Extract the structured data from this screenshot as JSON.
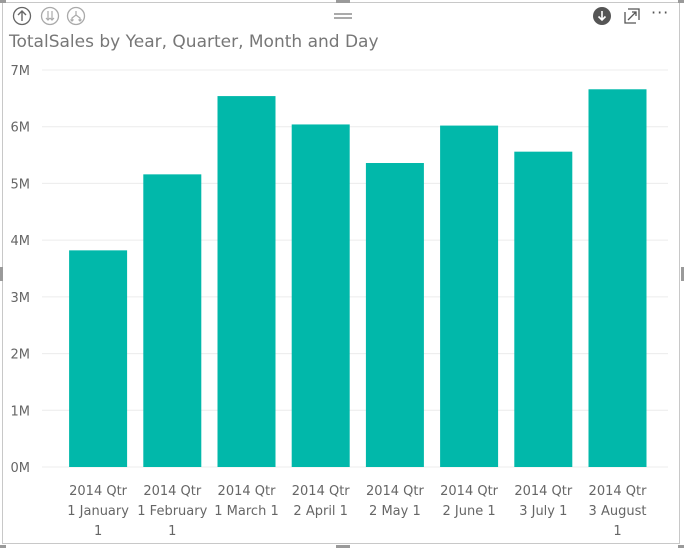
{
  "header": {
    "drill_up_icon": "arrow-up-circle-icon",
    "drill_down_all_icon": "double-arrow-down-circle-icon",
    "expand_hierarchy_icon": "fork-down-circle-icon",
    "drag_handle_icon": "drag-handle-icon",
    "drill_mode_icon": "arrow-down-filled-circle-icon",
    "focus_mode_icon": "focus-mode-icon",
    "more_options_icon": "ellipsis-icon",
    "more_options_label": "···"
  },
  "chart_data": {
    "type": "bar",
    "title": "TotalSales by Year, Quarter, Month and Day",
    "xlabel": "",
    "ylabel": "",
    "categories": [
      [
        "2014 Qtr",
        "1 January",
        "1"
      ],
      [
        "2014 Qtr",
        "1 February",
        "1"
      ],
      [
        "2014 Qtr",
        "1 March 1"
      ],
      [
        "2014 Qtr",
        "2 April 1"
      ],
      [
        "2014 Qtr",
        "2 May 1"
      ],
      [
        "2014 Qtr",
        "2 June 1"
      ],
      [
        "2014 Qtr",
        "3 July 1"
      ],
      [
        "2014 Qtr",
        "3 August",
        "1"
      ]
    ],
    "values": [
      3820000,
      5160000,
      6540000,
      6040000,
      5360000,
      6020000,
      5560000,
      6660000
    ],
    "ylim": [
      0,
      7000000
    ],
    "yticks": [
      0,
      1000000,
      2000000,
      3000000,
      4000000,
      5000000,
      6000000,
      7000000
    ],
    "ytick_labels": [
      "0M",
      "1M",
      "2M",
      "3M",
      "4M",
      "5M",
      "6M",
      "7M"
    ],
    "grid": true,
    "bar_color": "#01B8AA",
    "grid_color": "#ececec"
  }
}
